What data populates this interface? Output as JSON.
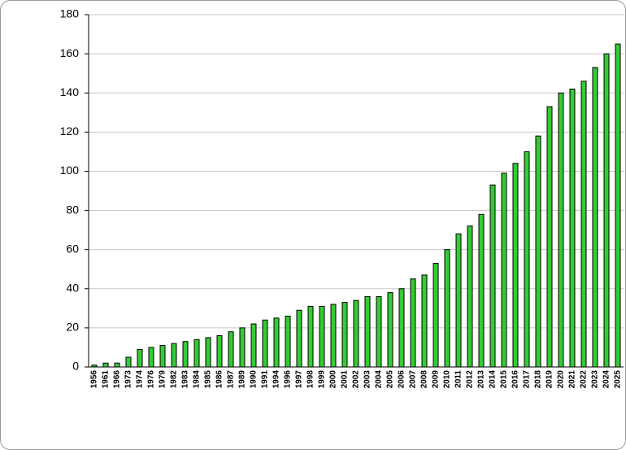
{
  "chart_data": {
    "type": "bar",
    "categories": [
      "1956",
      "1961",
      "1966",
      "1973",
      "1974",
      "1976",
      "1979",
      "1982",
      "1983",
      "1984",
      "1985",
      "1986",
      "1987",
      "1989",
      "1990",
      "1991",
      "1994",
      "1996",
      "1997",
      "1998",
      "1999",
      "2000",
      "2001",
      "2002",
      "2003",
      "2004",
      "2005",
      "2006",
      "2007",
      "2008",
      "2009",
      "2010",
      "2011",
      "2012",
      "2013",
      "2014",
      "2015",
      "2016",
      "2017",
      "2018",
      "2019",
      "2020",
      "2021",
      "2022",
      "2023",
      "2024",
      "2025"
    ],
    "values": [
      1,
      2,
      2,
      5,
      9,
      10,
      11,
      12,
      13,
      14,
      15,
      16,
      18,
      20,
      22,
      24,
      25,
      26,
      29,
      31,
      31,
      32,
      33,
      34,
      36,
      36,
      38,
      40,
      45,
      47,
      53,
      60,
      68,
      72,
      78,
      93,
      99,
      104,
      110,
      118,
      133,
      140,
      142,
      146,
      153,
      160,
      165
    ],
    "color": "#33cc33",
    "ylim": [
      0,
      180
    ],
    "yticks": [
      0,
      20,
      40,
      60,
      80,
      100,
      120,
      140,
      160,
      180
    ],
    "grid": true
  }
}
